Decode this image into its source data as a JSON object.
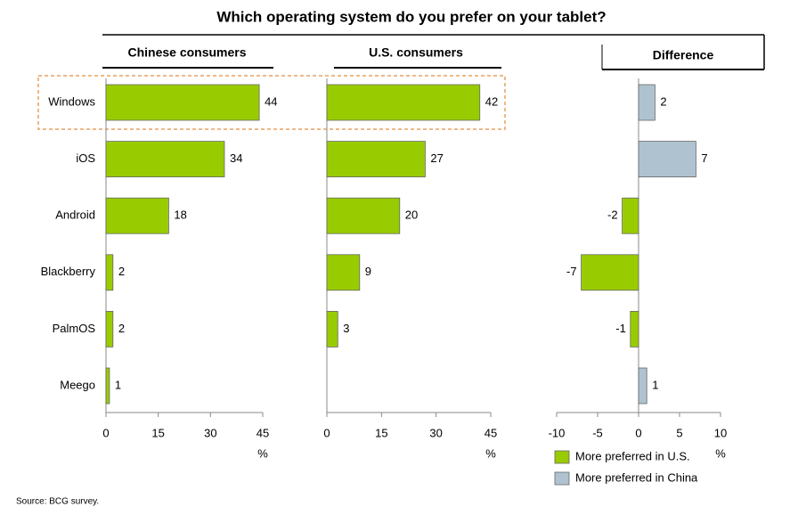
{
  "title": "Which operating system do you prefer on your tablet?",
  "source": "Source: BCG survey.",
  "chart_data": [
    {
      "type": "bar",
      "orientation": "horizontal",
      "subtitle": "Chinese consumers",
      "categories": [
        "Windows",
        "iOS",
        "Android",
        "Blackberry",
        "PalmOS",
        "Meego"
      ],
      "values": [
        44,
        34,
        18,
        2,
        2,
        1
      ],
      "color": "#99cc00",
      "xlim": [
        0,
        45
      ],
      "xticks": [
        0,
        15,
        30,
        45
      ],
      "xlabel": "%"
    },
    {
      "type": "bar",
      "orientation": "horizontal",
      "subtitle": "U.S. consumers",
      "values": [
        42,
        27,
        20,
        9,
        3,
        null
      ],
      "color": "#99cc00",
      "xlim": [
        0,
        45
      ],
      "xticks": [
        0,
        15,
        30,
        45
      ],
      "xlabel": "%"
    },
    {
      "type": "bar",
      "orientation": "horizontal",
      "subtitle": "Difference",
      "values": [
        2,
        7,
        -2,
        -7,
        -1,
        1
      ],
      "xlim": [
        -10,
        10
      ],
      "xticks": [
        -10,
        -5,
        0,
        5,
        10
      ],
      "xlabel": "%",
      "legend": [
        {
          "name": "More preferred in U.S.",
          "color": "#99cc00"
        },
        {
          "name": "More preferred in China",
          "color": "#aec3cf"
        }
      ]
    }
  ]
}
